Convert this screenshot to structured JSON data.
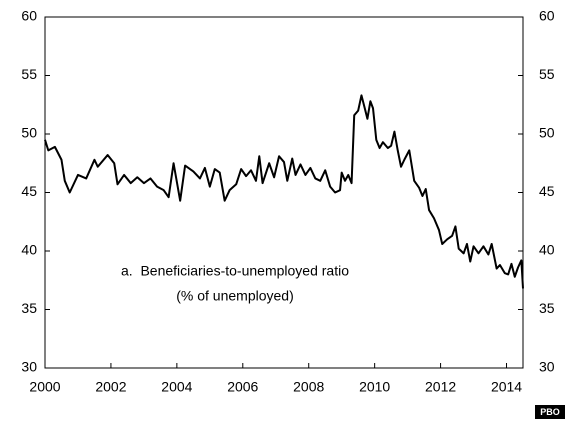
{
  "chart_data": {
    "type": "line",
    "annotation": [
      "a.  Beneficiaries-to-unemployed ratio",
      "(% of unemployed)"
    ],
    "watermark": "PBO",
    "x": [
      2000.0,
      2000.1,
      2000.3,
      2000.5,
      2000.6,
      2000.75,
      2001.0,
      2001.25,
      2001.5,
      2001.6,
      2001.9,
      2002.1,
      2002.2,
      2002.4,
      2002.6,
      2002.8,
      2003.0,
      2003.2,
      2003.4,
      2003.6,
      2003.75,
      2003.9,
      2004.1,
      2004.25,
      2004.5,
      2004.7,
      2004.85,
      2005.0,
      2005.15,
      2005.3,
      2005.45,
      2005.6,
      2005.8,
      2005.95,
      2006.1,
      2006.25,
      2006.4,
      2006.5,
      2006.6,
      2006.8,
      2006.95,
      2007.1,
      2007.25,
      2007.35,
      2007.5,
      2007.6,
      2007.75,
      2007.9,
      2008.05,
      2008.2,
      2008.35,
      2008.5,
      2008.65,
      2008.8,
      2008.95,
      2009.0,
      2009.1,
      2009.2,
      2009.3,
      2009.38,
      2009.5,
      2009.6,
      2009.7,
      2009.78,
      2009.87,
      2009.95,
      2010.05,
      2010.15,
      2010.25,
      2010.4,
      2010.5,
      2010.6,
      2010.7,
      2010.8,
      2010.9,
      2011.05,
      2011.2,
      2011.35,
      2011.45,
      2011.55,
      2011.65,
      2011.8,
      2011.95,
      2012.05,
      2012.2,
      2012.35,
      2012.45,
      2012.55,
      2012.7,
      2012.8,
      2012.9,
      2013.0,
      2013.15,
      2013.3,
      2013.45,
      2013.55,
      2013.7,
      2013.8,
      2013.95,
      2014.05,
      2014.15,
      2014.25,
      2014.35,
      2014.45,
      2014.5
    ],
    "values": [
      49.5,
      48.6,
      48.9,
      47.8,
      46.0,
      45.0,
      46.5,
      46.2,
      47.8,
      47.2,
      48.2,
      47.5,
      45.7,
      46.5,
      45.8,
      46.3,
      45.8,
      46.2,
      45.5,
      45.2,
      44.6,
      47.5,
      44.3,
      47.3,
      46.8,
      46.2,
      47.1,
      45.5,
      47.0,
      46.7,
      44.3,
      45.2,
      45.7,
      47.0,
      46.4,
      46.9,
      46.0,
      48.1,
      45.8,
      47.5,
      46.3,
      48.1,
      47.6,
      46.0,
      47.9,
      46.5,
      47.4,
      46.5,
      47.1,
      46.2,
      46.0,
      46.9,
      45.5,
      45.0,
      45.2,
      46.7,
      46.0,
      46.5,
      45.8,
      51.6,
      52.0,
      53.3,
      52.2,
      51.3,
      52.8,
      52.2,
      49.5,
      48.8,
      49.3,
      48.8,
      49.0,
      50.2,
      48.6,
      47.2,
      47.8,
      48.6,
      46.0,
      45.4,
      44.7,
      45.3,
      43.5,
      42.8,
      41.8,
      40.6,
      41.0,
      41.3,
      42.1,
      40.2,
      39.8,
      40.6,
      39.1,
      40.4,
      39.8,
      40.4,
      39.7,
      40.6,
      38.5,
      38.8,
      38.1,
      38.0,
      38.9,
      37.8,
      38.6,
      39.2,
      36.8
    ],
    "color": "#000000",
    "xlim": [
      2000,
      2014.5
    ],
    "xticks": [
      2000,
      2002,
      2004,
      2006,
      2008,
      2010,
      2012,
      2014
    ],
    "ylim": [
      30,
      60
    ],
    "yticks": [
      30,
      35,
      40,
      45,
      50,
      55,
      60
    ],
    "y2lim": [
      30,
      60
    ],
    "y2ticks": [
      30,
      35,
      40,
      45,
      50,
      55,
      60
    ]
  }
}
